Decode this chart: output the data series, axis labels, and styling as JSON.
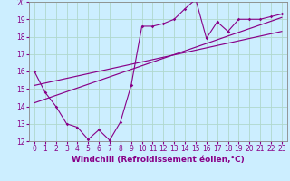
{
  "xlabel": "Windchill (Refroidissement éolien,°C)",
  "bg_color": "#cceeff",
  "grid_color": "#b0d8cc",
  "line_color": "#880088",
  "spine_color": "#888888",
  "xlim": [
    -0.5,
    23.5
  ],
  "ylim": [
    12,
    20
  ],
  "xticks": [
    0,
    1,
    2,
    3,
    4,
    5,
    6,
    7,
    8,
    9,
    10,
    11,
    12,
    13,
    14,
    15,
    16,
    17,
    18,
    19,
    20,
    21,
    22,
    23
  ],
  "yticks": [
    12,
    13,
    14,
    15,
    16,
    17,
    18,
    19,
    20
  ],
  "data_x": [
    0,
    1,
    2,
    3,
    4,
    5,
    6,
    7,
    8,
    9,
    10,
    11,
    12,
    13,
    14,
    15,
    16,
    17,
    18,
    19,
    20,
    21,
    22,
    23
  ],
  "data_y": [
    16.0,
    14.8,
    14.0,
    13.0,
    12.8,
    12.1,
    12.65,
    12.05,
    13.1,
    15.2,
    18.6,
    18.6,
    18.75,
    19.0,
    19.6,
    20.15,
    17.9,
    18.85,
    18.3,
    19.0,
    19.0,
    19.0,
    19.15,
    19.3
  ],
  "trend1_x": [
    0,
    23
  ],
  "trend1_y": [
    15.2,
    18.3
  ],
  "trend2_x": [
    0,
    23
  ],
  "trend2_y": [
    14.2,
    19.1
  ],
  "xlabel_fontsize": 6.5,
  "tick_fontsize": 5.5
}
